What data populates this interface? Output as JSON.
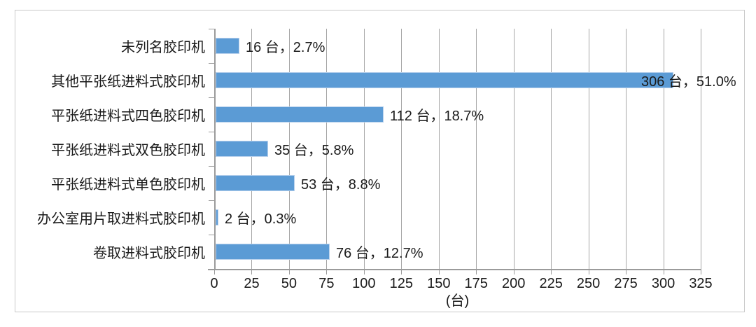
{
  "chart_data": {
    "type": "bar",
    "orientation": "horizontal",
    "title": "",
    "categories": [
      "未列名胶印机",
      "其他平张纸进料式胶印机",
      "平张纸进料式四色胶印机",
      "平张纸进料式双色胶印机",
      "平张纸进料式单色胶印机",
      "办公室用片取进料式胶印机",
      "卷取进料式胶印机"
    ],
    "values": [
      16,
      306,
      112,
      35,
      53,
      2,
      76
    ],
    "percentages": [
      2.7,
      51.0,
      18.7,
      5.8,
      8.8,
      0.3,
      12.7
    ],
    "data_labels": [
      "16 台，2.7%",
      "306 台，51.0%",
      "112 台，18.7%",
      "35 台，5.8%",
      "53 台，8.8%",
      "2 台，0.3%",
      "76 台，12.7%"
    ],
    "xlabel": "(台)",
    "ylabel": "",
    "xlim": [
      0,
      325
    ],
    "xticks": [
      0,
      25,
      50,
      75,
      100,
      125,
      150,
      175,
      200,
      225,
      250,
      275,
      300,
      325
    ],
    "grid": "vertical",
    "legend": "none",
    "colors": {
      "bar_fill": "#5B9BD5",
      "bar_border": "#B7D0EC",
      "gridline": "#A6A6A6",
      "axis_line": "#9B9B9B",
      "text": "#1A1A1A",
      "figure_border": "#C9C9C9"
    }
  }
}
